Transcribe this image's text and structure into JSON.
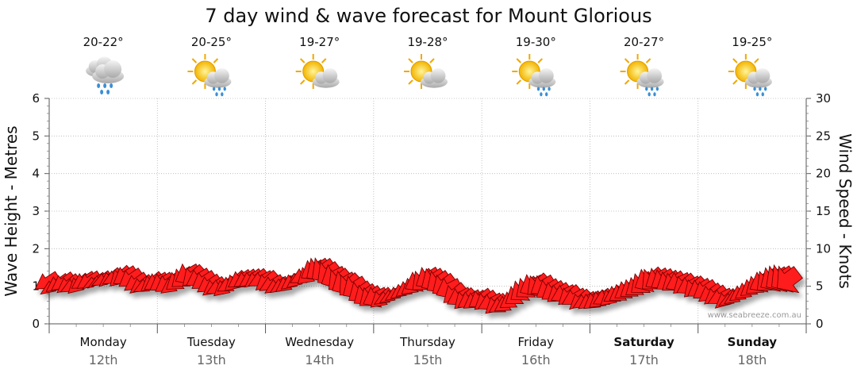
{
  "chart_data": {
    "type": "line",
    "title": "7 day wind & wave forecast for Mount Glorious",
    "ylabel": "Wave Height - Metres",
    "y2label": "Wind Speed - Knots",
    "ylim": [
      0,
      6
    ],
    "y2lim": [
      0,
      30
    ],
    "yticks": [
      "0",
      "1",
      "2",
      "3",
      "4",
      "5",
      "6"
    ],
    "y2ticks": [
      "0",
      "5",
      "10",
      "15",
      "20",
      "25",
      "30"
    ],
    "grid": true,
    "credit": "www.seabreeze.com.au",
    "days": [
      {
        "name": "Monday",
        "date": "12th",
        "temp": "20-22°",
        "icon": "rain-cloud-icon",
        "bold": false
      },
      {
        "name": "Tuesday",
        "date": "13th",
        "temp": "20-25°",
        "icon": "sun-cloud-rain-icon",
        "bold": false
      },
      {
        "name": "Wednesday",
        "date": "14th",
        "temp": "19-27°",
        "icon": "sun-cloud-icon",
        "bold": false
      },
      {
        "name": "Thursday",
        "date": "15th",
        "temp": "19-28°",
        "icon": "sun-cloud-icon",
        "bold": false
      },
      {
        "name": "Friday",
        "date": "16th",
        "temp": "19-30°",
        "icon": "sun-cloud-rain-icon",
        "bold": false
      },
      {
        "name": "Saturday",
        "date": "17th",
        "temp": "20-27°",
        "icon": "sun-cloud-rain-icon",
        "bold": true
      },
      {
        "name": "Sunday",
        "date": "18th",
        "temp": "19-25°",
        "icon": "sun-cloud-rain-icon",
        "bold": true
      }
    ],
    "series": [
      {
        "values": [
          7,
          6,
          6.6,
          6.8,
          6.5,
          6.2,
          6.6,
          7,
          7,
          6.5,
          6.7,
          6.9,
          7.2,
          7.3,
          7.7,
          7.9,
          7.5,
          6.8,
          6.4,
          6.2,
          6.8,
          7,
          7,
          6.8,
          6.4,
          7.3,
          7.8,
          8.3,
          8,
          7.5,
          7.2,
          6.6,
          6.2,
          6.1,
          6.2,
          6.5,
          7,
          7.3,
          7.2,
          7.2,
          7.2,
          7.1,
          7,
          6.5,
          6.2,
          6.3,
          6.6,
          6.9,
          7.1,
          7.6,
          8,
          8.8,
          9.2,
          9.3,
          8.8,
          8.2,
          7.8,
          7.4,
          7.2,
          6.8,
          6,
          5.6,
          5.3,
          5.2,
          4.8,
          4.6,
          4.8,
          5.2,
          5.6,
          6,
          6.5,
          7.2,
          7.6,
          7.9,
          7.8,
          7.5,
          7,
          6.4,
          5.6,
          5,
          4.8,
          4.6,
          4.5,
          4.8,
          4.5,
          4.2,
          4,
          3.8,
          4,
          4.6,
          5.4,
          6.2,
          6.6,
          6.9,
          7,
          6.8,
          6.2,
          5.9,
          5.6,
          5.4,
          5.2,
          4.8,
          4.4,
          4.2,
          4.3,
          4.5,
          4.7,
          4.8,
          5,
          5.3,
          5.6,
          6,
          6.3,
          6.6,
          7.2,
          7.6,
          7.9,
          7.8,
          7.6,
          7.3,
          7.2,
          7.1,
          6.8,
          6.5,
          6.4,
          6.2,
          6,
          5.4,
          5.1,
          4.8,
          4.5,
          4.3,
          4.8,
          5.4,
          5.8,
          6.3,
          6.8,
          7.2,
          7.6,
          7.9,
          8.2,
          8.4,
          8.3,
          8.1,
          7.8,
          7.6
        ]
      },
      {
        "values": [
          4.7,
          4.4,
          4.6,
          4.8,
          4.6,
          4.4,
          4.5,
          4.8,
          4.9,
          5.3,
          5.5,
          5.3,
          5.6,
          5.5,
          5.4,
          5.2,
          5,
          4.7,
          4.5,
          4.4,
          4.8,
          4.5,
          4.4,
          4.3,
          4.4,
          4.6,
          4.9,
          5.2,
          5.2,
          5.1,
          4.7,
          4.4,
          4.1,
          4,
          4.1,
          4.4,
          4.8,
          4.9,
          5.2,
          5.3,
          5.3,
          5.1,
          4.9,
          4.6,
          4.4,
          4.5,
          4.6,
          5,
          5.3,
          5.5,
          5.6,
          5.8,
          5.5,
          5.2,
          4.9,
          4.5,
          4.2,
          3.7,
          3.5,
          3.2,
          2.8,
          2.5,
          2.3,
          2.2,
          2.5,
          2.9,
          3.2,
          3.5,
          3.8,
          4,
          4.2,
          4.3,
          4.4,
          4.6,
          4.3,
          4,
          3.8,
          3.3,
          2.9,
          2.5,
          2.3,
          2.2,
          2.2,
          2.3,
          2.1,
          1.9,
          1.7,
          1.6,
          1.8,
          2.2,
          2.6,
          3,
          3.4,
          3.6,
          3.8,
          3.7,
          3.4,
          3.2,
          3,
          2.9,
          2.8,
          2.6,
          2.5,
          2.4,
          2.3,
          2.2,
          2.4,
          2.6,
          2.8,
          3,
          3.1,
          3.4,
          3.6,
          3.8,
          4,
          4.2,
          4.4,
          4.5,
          4.6,
          4.5,
          4.4,
          4.3,
          4.2,
          4,
          3.8,
          3.6,
          3.4,
          3.2,
          2.9,
          2.7,
          2.6,
          2.8,
          3,
          3.3,
          3.6,
          3.9,
          4.1,
          4.2,
          4.3,
          4.2,
          4.1,
          4,
          3.9
        ]
      }
    ]
  }
}
